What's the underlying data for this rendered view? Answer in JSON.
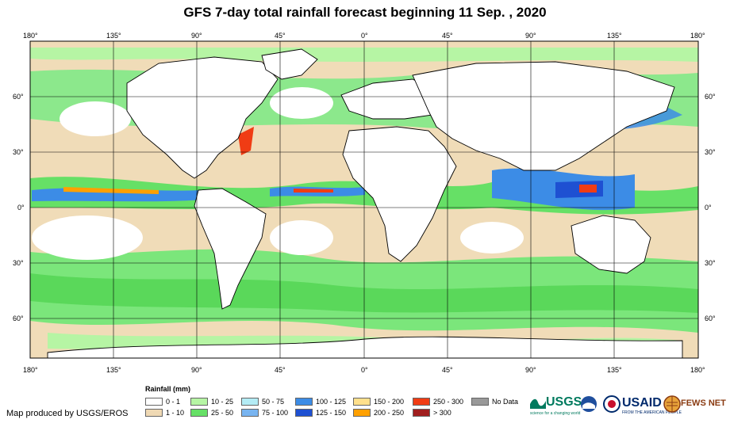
{
  "title": "GFS 7-day total rainfall forecast beginning 11 Sep. , 2020",
  "lon_labels": [
    "180°",
    "135°",
    "90°",
    "45°",
    "0°",
    "45°",
    "90°",
    "135°",
    "180°"
  ],
  "lat_labels": [
    "60°",
    "30°",
    "0°",
    "30°",
    "60°"
  ],
  "legend": {
    "title": "Rainfall (mm)",
    "items": [
      {
        "label": "0 - 1",
        "color": "#ffffff"
      },
      {
        "label": "1 - 10",
        "color": "#efd9b4"
      },
      {
        "label": "10 - 25",
        "color": "#b6f5a4"
      },
      {
        "label": "25 - 50",
        "color": "#66e066"
      },
      {
        "label": "50 - 75",
        "color": "#b4ecf5"
      },
      {
        "label": "75 - 100",
        "color": "#78b4f0"
      },
      {
        "label": "100 - 125",
        "color": "#3c8ce6"
      },
      {
        "label": "125 - 150",
        "color": "#1e50d2"
      },
      {
        "label": "150 - 200",
        "color": "#ffe08c"
      },
      {
        "label": "200 - 250",
        "color": "#ffa000"
      },
      {
        "label": "250 - 300",
        "color": "#f03c14"
      },
      {
        "label": "> 300",
        "color": "#a01e1e"
      },
      {
        "label": "No Data",
        "color": "#999999"
      }
    ]
  },
  "producer": "Map produced by USGS/EROS",
  "logos": {
    "usgs": "USGS",
    "usgs_tagline": "science for a changing world",
    "usaid": "USAID",
    "usaid_tagline": "FROM THE AMERICAN PEOPLE",
    "fews": "FEWS NET"
  }
}
